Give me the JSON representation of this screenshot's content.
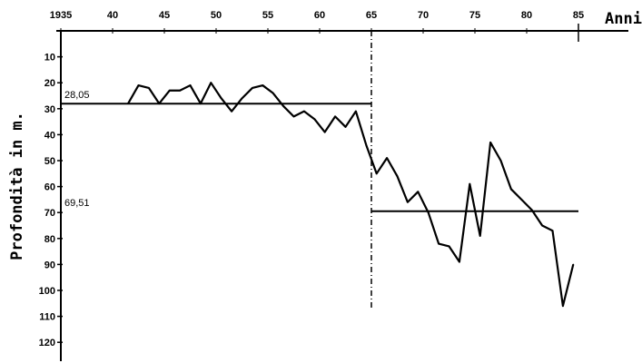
{
  "chart_data": {
    "type": "line",
    "title": "",
    "xlabel": "Anni",
    "ylabel": "Profondità in m.",
    "xlim": [
      1935,
      1991
    ],
    "ylim": [
      0,
      125
    ],
    "y_inverted": true,
    "x_axis_position": "top",
    "x_tick_labels": [
      "1935",
      "40",
      "45",
      "50",
      "55",
      "60",
      "65",
      "70",
      "75",
      "80",
      "85"
    ],
    "x_tick_values": [
      1935,
      1940,
      1945,
      1950,
      1955,
      1960,
      1965,
      1970,
      1975,
      1980,
      1985
    ],
    "y_tick_labels": [
      "10",
      "20",
      "30",
      "40",
      "50",
      "60",
      "70",
      "80",
      "90",
      "100",
      "110",
      "120"
    ],
    "y_tick_values": [
      10,
      20,
      30,
      40,
      50,
      60,
      70,
      80,
      90,
      100,
      110,
      120
    ],
    "series": [
      {
        "x": [
          1941.5,
          1942.5,
          1943.5,
          1944.5,
          1945.5,
          1946.5,
          1947.5,
          1948.5,
          1949.5,
          1950.5,
          1951.5,
          1952.5,
          1953.5,
          1954.5,
          1955.5,
          1956.5,
          1957.5,
          1958.5,
          1959.5,
          1960.5,
          1961.5,
          1962.5,
          1963.5,
          1964.5,
          1965.5,
          1966.5,
          1967.5,
          1968.5,
          1969.5,
          1970.5,
          1971.5,
          1972.5,
          1973.5,
          1974.5,
          1975.5,
          1976.5,
          1977.5,
          1978.5,
          1979.5,
          1980.5,
          1981.5,
          1982.5,
          1983.5,
          1984.5
        ],
        "values": [
          28,
          21,
          22,
          28,
          23,
          23,
          21,
          28,
          20,
          26,
          31,
          26,
          22,
          21,
          24,
          29,
          33,
          31,
          34,
          39,
          33,
          37,
          31,
          44,
          55,
          49,
          56,
          66,
          62,
          70,
          82,
          83,
          89,
          59,
          79,
          43,
          50,
          61,
          65,
          69,
          75,
          77,
          106,
          90
        ]
      }
    ],
    "reference_lines": [
      {
        "label": "28,05",
        "value": 28.05,
        "x_start": 1935,
        "x_end": 1965
      },
      {
        "label": "69,51",
        "value": 69.51,
        "x_start": 1965,
        "x_end": 1985
      }
    ],
    "vertical_marker_x": 1965,
    "grid": false,
    "legend": "none"
  }
}
